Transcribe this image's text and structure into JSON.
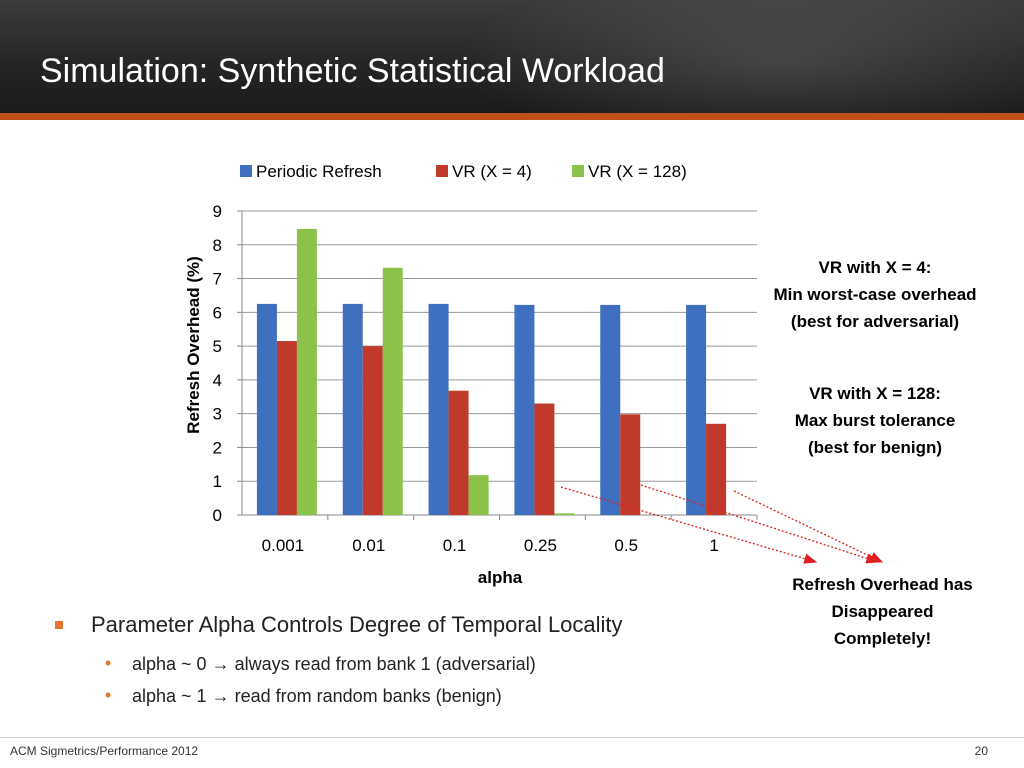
{
  "slide": {
    "title": "Simulation: Synthetic Statistical Workload",
    "footer_left": "ACM Sigmetrics/Performance 2012",
    "page_number": "20"
  },
  "chart_data": {
    "type": "bar",
    "categories": [
      "0.001",
      "0.01",
      "0.1",
      "0.25",
      "0.5",
      "1"
    ],
    "series": [
      {
        "name": "Periodic Refresh",
        "values": [
          6.25,
          6.25,
          6.25,
          6.22,
          6.22,
          6.22
        ],
        "color": "#3f6fbf"
      },
      {
        "name": "VR (X = 4)",
        "values": [
          5.15,
          5.0,
          3.68,
          3.3,
          2.98,
          2.7
        ],
        "color": "#c0392b"
      },
      {
        "name": "VR (X = 128)",
        "values": [
          8.47,
          7.32,
          1.18,
          0.05,
          0,
          0
        ],
        "color": "#8bc34a"
      }
    ],
    "xlabel": "alpha",
    "ylabel": "Refresh Overhead (%)",
    "ylim": [
      0,
      9
    ],
    "yticks": [
      "0",
      "1",
      "2",
      "3",
      "4",
      "5",
      "6",
      "7",
      "8",
      "9"
    ],
    "grid": true,
    "legend_position": "top"
  },
  "annotations": {
    "x4": [
      "VR with X = 4:",
      "Min worst-case overhead",
      "(best for adversarial)"
    ],
    "x128": [
      "VR with X = 128:",
      "Max burst tolerance",
      "(best for benign)"
    ],
    "disappeared": [
      "Refresh Overhead has",
      "Disappeared",
      "Completely!"
    ]
  },
  "bullets": {
    "main": "Parameter Alpha Controls Degree of Temporal Locality",
    "sub": [
      "alpha ~ 0 → always read from bank 1 (adversarial)",
      "alpha ~ 1 → read from random banks (benign)"
    ]
  },
  "colors": {
    "accent": "#c0501a",
    "bullet": "#e8732a",
    "arrow": "#e02020"
  }
}
